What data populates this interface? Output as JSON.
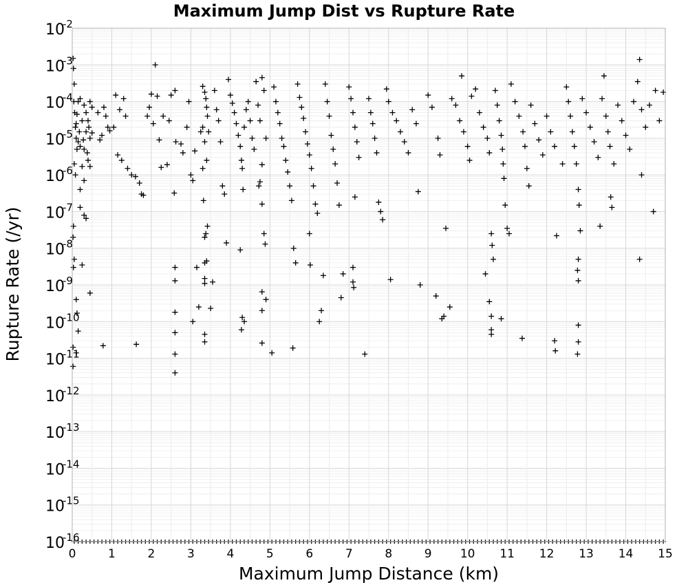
{
  "chart_data": {
    "type": "scatter",
    "title": "Maximum Jump Dist vs Rupture Rate",
    "xlabel": "Maximum Jump Distance (km)",
    "ylabel": "Rupture Rate (/yr)",
    "xlim": [
      0,
      15
    ],
    "ylim": [
      1e-16,
      0.01
    ],
    "yscale": "log",
    "grid": true,
    "marker": "plus",
    "marker_color": "#000000",
    "x_ticks": [
      "0",
      "1",
      "2",
      "3",
      "4",
      "5",
      "6",
      "7",
      "8",
      "9",
      "10",
      "11",
      "12",
      "13",
      "14",
      "15"
    ],
    "y_ticks": [
      {
        "base": "10",
        "exp": "-16"
      },
      {
        "base": "10",
        "exp": "-15"
      },
      {
        "base": "10",
        "exp": "-14"
      },
      {
        "base": "10",
        "exp": "-13"
      },
      {
        "base": "10",
        "exp": "-12"
      },
      {
        "base": "10",
        "exp": "-11"
      },
      {
        "base": "10",
        "exp": "-10"
      },
      {
        "base": "10",
        "exp": "-9"
      },
      {
        "base": "10",
        "exp": "-8"
      },
      {
        "base": "10",
        "exp": "-7"
      },
      {
        "base": "10",
        "exp": "-6"
      },
      {
        "base": "10",
        "exp": "-5"
      },
      {
        "base": "10",
        "exp": "-4"
      },
      {
        "base": "10",
        "exp": "-3"
      },
      {
        "base": "10",
        "exp": "-2"
      }
    ],
    "points": [
      [
        0.02,
        0.0015
      ],
      [
        0.03,
        0.0008
      ],
      [
        0.05,
        0.0003
      ],
      [
        0.04,
        0.0001
      ],
      [
        0.06,
        5e-05
      ],
      [
        0.08,
        2e-05
      ],
      [
        0.1,
        1e-05
      ],
      [
        0.12,
        5e-06
      ],
      [
        0.05,
        2e-06
      ],
      [
        0.08,
        1e-06
      ],
      [
        0.03,
        4e-08
      ],
      [
        0.02,
        2e-08
      ],
      [
        0.05,
        5e-09
      ],
      [
        0.03,
        3e-09
      ],
      [
        0.1,
        4e-10
      ],
      [
        0.12,
        1.7e-10
      ],
      [
        0.15,
        5.5e-11
      ],
      [
        0.02,
        2e-11
      ],
      [
        0.02,
        6e-12
      ],
      [
        0.1,
        1.4e-11
      ],
      [
        0.25,
        3.5e-09
      ],
      [
        0.45,
        6e-10
      ],
      [
        0.2,
        1.3e-07
      ],
      [
        0.3,
        8e-08
      ],
      [
        0.35,
        6.5e-08
      ],
      [
        0.2,
        4e-07
      ],
      [
        0.3,
        7e-07
      ],
      [
        0.25,
        1.7e-06
      ],
      [
        0.4,
        2.5e-06
      ],
      [
        0.45,
        1.7e-06
      ],
      [
        0.15,
        0.0001
      ],
      [
        0.2,
        0.00012
      ],
      [
        0.3,
        8e-05
      ],
      [
        0.35,
        5e-05
      ],
      [
        0.4,
        3e-05
      ],
      [
        0.45,
        0.0001
      ],
      [
        0.5,
        7e-05
      ],
      [
        0.25,
        3e-05
      ],
      [
        0.35,
        1.5e-05
      ],
      [
        0.15,
        8e-06
      ],
      [
        0.2,
        6e-06
      ],
      [
        0.3,
        5e-06
      ],
      [
        0.45,
        1e-05
      ],
      [
        0.1,
        2.5e-05
      ],
      [
        0.18,
        1.5e-05
      ],
      [
        0.28,
        9e-06
      ],
      [
        0.38,
        4e-06
      ],
      [
        0.5,
        1.4e-05
      ],
      [
        0.42,
        2e-05
      ],
      [
        0.12,
        4.5e-05
      ],
      [
        0.8,
        7e-05
      ],
      [
        0.85,
        4e-05
      ],
      [
        0.9,
        2e-05
      ],
      [
        0.75,
        1.2e-05
      ],
      [
        0.95,
        1.6e-05
      ],
      [
        0.65,
        5e-05
      ],
      [
        0.7,
        9e-06
      ],
      [
        0.78,
        2.2e-11
      ],
      [
        1.1,
        0.00015
      ],
      [
        1.2,
        6e-05
      ],
      [
        1.3,
        0.00012
      ],
      [
        1.35,
        4e-05
      ],
      [
        1.15,
        3.5e-06
      ],
      [
        1.05,
        2e-05
      ],
      [
        1.25,
        2.5e-06
      ],
      [
        1.4,
        1.5e-06
      ],
      [
        1.5,
        1e-06
      ],
      [
        1.6,
        9e-07
      ],
      [
        1.7,
        6e-07
      ],
      [
        1.75,
        3e-07
      ],
      [
        1.8,
        2.8e-07
      ],
      [
        1.62,
        2.4e-11
      ],
      [
        1.9,
        4e-05
      ],
      [
        1.95,
        7e-05
      ],
      [
        2.0,
        0.00016
      ],
      [
        2.05,
        2.5e-05
      ],
      [
        2.1,
        0.001
      ],
      [
        2.15,
        0.00014
      ],
      [
        2.2,
        9e-06
      ],
      [
        2.25,
        1.6e-06
      ],
      [
        2.3,
        4e-05
      ],
      [
        2.4,
        1.9e-06
      ],
      [
        2.45,
        3e-05
      ],
      [
        2.5,
        0.00015
      ],
      [
        2.6,
        0.0002
      ],
      [
        2.62,
        8e-06
      ],
      [
        2.58,
        3.2e-07
      ],
      [
        2.6,
        3e-09
      ],
      [
        2.6,
        1.3e-09
      ],
      [
        2.6,
        1.8e-10
      ],
      [
        2.6,
        5e-11
      ],
      [
        2.6,
        1.3e-11
      ],
      [
        2.6,
        4e-12
      ],
      [
        2.75,
        7e-06
      ],
      [
        2.8,
        4e-06
      ],
      [
        2.9,
        2e-05
      ],
      [
        2.95,
        0.0001
      ],
      [
        3.0,
        1e-06
      ],
      [
        3.05,
        7e-07
      ],
      [
        3.1,
        4.5e-06
      ],
      [
        3.05,
        1e-10
      ],
      [
        3.15,
        3e-09
      ],
      [
        3.2,
        2.5e-10
      ],
      [
        3.25,
        1.5e-05
      ],
      [
        3.3,
        2e-05
      ],
      [
        3.32,
        2e-07
      ],
      [
        3.35,
        2e-08
      ],
      [
        3.35,
        4e-09
      ],
      [
        3.35,
        1.5e-09
      ],
      [
        3.35,
        1.1e-09
      ],
      [
        3.35,
        4.5e-11
      ],
      [
        3.35,
        2.8e-11
      ],
      [
        3.4,
        4.5e-09
      ],
      [
        3.38,
        2.5e-08
      ],
      [
        3.42,
        4e-08
      ],
      [
        3.3,
        0.00026
      ],
      [
        3.35,
        0.00018
      ],
      [
        3.38,
        0.00012
      ],
      [
        3.4,
        7e-05
      ],
      [
        3.42,
        4e-05
      ],
      [
        3.45,
        1.5e-05
      ],
      [
        3.35,
        8e-06
      ],
      [
        3.4,
        2.5e-06
      ],
      [
        3.3,
        1.5e-06
      ],
      [
        3.5,
        2.3e-10
      ],
      [
        3.55,
        1.2e-09
      ],
      [
        3.6,
        0.0002
      ],
      [
        3.65,
        6e-05
      ],
      [
        3.7,
        3e-05
      ],
      [
        3.75,
        8e-06
      ],
      [
        3.8,
        5e-07
      ],
      [
        3.85,
        3e-07
      ],
      [
        3.9,
        1.4e-08
      ],
      [
        3.95,
        0.0004
      ],
      [
        4.0,
        0.00015
      ],
      [
        4.05,
        9e-05
      ],
      [
        4.1,
        5e-05
      ],
      [
        4.15,
        2.5e-05
      ],
      [
        4.2,
        1.2e-05
      ],
      [
        4.25,
        6e-06
      ],
      [
        4.28,
        2.5e-06
      ],
      [
        4.3,
        1.5e-06
      ],
      [
        4.32,
        4e-07
      ],
      [
        4.25,
        9e-09
      ],
      [
        4.3,
        1.3e-10
      ],
      [
        4.35,
        1e-10
      ],
      [
        4.28,
        6e-11
      ],
      [
        4.35,
        2e-05
      ],
      [
        4.4,
        6e-05
      ],
      [
        4.45,
        0.0001
      ],
      [
        4.5,
        3e-05
      ],
      [
        4.55,
        1e-05
      ],
      [
        4.6,
        5e-06
      ],
      [
        4.65,
        0.00035
      ],
      [
        4.7,
        8e-05
      ],
      [
        4.75,
        3e-05
      ],
      [
        4.8,
        0.00045
      ],
      [
        4.85,
        0.0002
      ],
      [
        4.9,
        1e-05
      ],
      [
        4.8,
        1.9e-06
      ],
      [
        4.75,
        6.5e-07
      ],
      [
        4.72,
        5e-07
      ],
      [
        4.8,
        1.6e-07
      ],
      [
        4.85,
        2.5e-08
      ],
      [
        4.88,
        1.3e-08
      ],
      [
        4.8,
        6.5e-10
      ],
      [
        4.9,
        4e-10
      ],
      [
        4.8,
        2e-10
      ],
      [
        4.8,
        2.6e-11
      ],
      [
        5.05,
        1.4e-11
      ],
      [
        5.1,
        0.00025
      ],
      [
        5.15,
        0.0001
      ],
      [
        5.2,
        5e-05
      ],
      [
        5.25,
        2.5e-05
      ],
      [
        5.3,
        1e-05
      ],
      [
        5.35,
        6e-06
      ],
      [
        5.4,
        2.5e-06
      ],
      [
        5.45,
        1.2e-06
      ],
      [
        5.5,
        5e-07
      ],
      [
        5.55,
        2e-07
      ],
      [
        5.6,
        1e-08
      ],
      [
        5.65,
        4e-09
      ],
      [
        5.58,
        1.9e-11
      ],
      [
        5.7,
        0.0003
      ],
      [
        5.75,
        0.00013
      ],
      [
        5.8,
        7e-05
      ],
      [
        5.85,
        3.5e-05
      ],
      [
        5.9,
        1.5e-05
      ],
      [
        5.95,
        7e-06
      ],
      [
        6.0,
        3.5e-06
      ],
      [
        6.05,
        1.5e-06
      ],
      [
        6.1,
        5e-07
      ],
      [
        6.15,
        1.6e-07
      ],
      [
        6.2,
        9e-08
      ],
      [
        6.0,
        2.5e-08
      ],
      [
        6.02,
        3.5e-09
      ],
      [
        6.25,
        1e-10
      ],
      [
        6.3,
        2e-10
      ],
      [
        6.35,
        1.8e-09
      ],
      [
        6.4,
        0.0003
      ],
      [
        6.45,
        0.0001
      ],
      [
        6.5,
        4e-05
      ],
      [
        6.55,
        1.2e-05
      ],
      [
        6.6,
        5e-06
      ],
      [
        6.65,
        2e-06
      ],
      [
        6.7,
        6e-07
      ],
      [
        6.75,
        1.5e-07
      ],
      [
        6.8,
        4.5e-10
      ],
      [
        6.85,
        2e-09
      ],
      [
        7.0,
        0.00025
      ],
      [
        7.05,
        0.00012
      ],
      [
        7.1,
        5e-05
      ],
      [
        7.15,
        2e-05
      ],
      [
        7.2,
        8e-06
      ],
      [
        7.25,
        3e-06
      ],
      [
        7.15,
        2.5e-07
      ],
      [
        7.1,
        3e-09
      ],
      [
        7.1,
        1.2e-09
      ],
      [
        7.12,
        8.5e-10
      ],
      [
        7.4,
        1.3e-11
      ],
      [
        7.5,
        0.00012
      ],
      [
        7.55,
        5e-05
      ],
      [
        7.6,
        2.5e-05
      ],
      [
        7.65,
        1e-05
      ],
      [
        7.7,
        4e-06
      ],
      [
        7.75,
        1.8e-07
      ],
      [
        7.8,
        1e-07
      ],
      [
        7.85,
        6e-08
      ],
      [
        7.95,
        0.00022
      ],
      [
        8.0,
        0.0001
      ],
      [
        8.05,
        1.4e-09
      ],
      [
        8.1,
        5e-05
      ],
      [
        8.2,
        3e-05
      ],
      [
        8.3,
        1.5e-05
      ],
      [
        8.4,
        8e-06
      ],
      [
        8.5,
        4e-06
      ],
      [
        8.6,
        6e-05
      ],
      [
        8.7,
        2.5e-05
      ],
      [
        8.75,
        3.5e-07
      ],
      [
        8.8,
        1e-09
      ],
      [
        9.0,
        0.00015
      ],
      [
        9.1,
        7e-05
      ],
      [
        9.2,
        5e-10
      ],
      [
        9.25,
        1e-05
      ],
      [
        9.3,
        3.5e-06
      ],
      [
        9.35,
        1.2e-10
      ],
      [
        9.4,
        1.4e-10
      ],
      [
        9.45,
        3.5e-08
      ],
      [
        9.55,
        2.5e-10
      ],
      [
        9.6,
        0.00012
      ],
      [
        9.7,
        8e-05
      ],
      [
        9.8,
        3e-05
      ],
      [
        9.85,
        0.0005
      ],
      [
        9.9,
        1.5e-05
      ],
      [
        10.0,
        6e-06
      ],
      [
        10.05,
        2.5e-06
      ],
      [
        10.1,
        0.00014
      ],
      [
        10.2,
        0.00022
      ],
      [
        10.3,
        5e-05
      ],
      [
        10.4,
        2e-05
      ],
      [
        10.45,
        2e-09
      ],
      [
        10.5,
        1e-05
      ],
      [
        10.55,
        4e-06
      ],
      [
        10.55,
        3.5e-10
      ],
      [
        10.6,
        1.4e-10
      ],
      [
        10.6,
        6e-11
      ],
      [
        10.6,
        4.5e-11
      ],
      [
        10.6,
        2.5e-08
      ],
      [
        10.62,
        1.2e-08
      ],
      [
        10.65,
        5e-09
      ],
      [
        10.7,
        0.0002
      ],
      [
        10.75,
        8e-05
      ],
      [
        10.8,
        3e-05
      ],
      [
        10.85,
        1.2e-05
      ],
      [
        10.88,
        5e-06
      ],
      [
        10.9,
        2e-06
      ],
      [
        10.92,
        8e-07
      ],
      [
        10.95,
        1.5e-07
      ],
      [
        11.0,
        3.5e-08
      ],
      [
        10.85,
        1.2e-10
      ],
      [
        11.05,
        2.5e-08
      ],
      [
        11.1,
        0.0003
      ],
      [
        11.2,
        0.0001
      ],
      [
        11.3,
        4e-05
      ],
      [
        11.4,
        1.5e-05
      ],
      [
        11.45,
        6e-06
      ],
      [
        11.38,
        3.5e-11
      ],
      [
        11.5,
        1.5e-06
      ],
      [
        11.55,
        5e-07
      ],
      [
        11.6,
        8e-05
      ],
      [
        11.7,
        2.5e-05
      ],
      [
        11.8,
        9e-06
      ],
      [
        11.9,
        3.5e-06
      ],
      [
        12.0,
        4e-05
      ],
      [
        12.1,
        1.5e-05
      ],
      [
        12.2,
        6e-06
      ],
      [
        12.25,
        2.2e-08
      ],
      [
        12.2,
        3e-11
      ],
      [
        12.22,
        1.6e-11
      ],
      [
        12.4,
        2e-06
      ],
      [
        12.5,
        0.00025
      ],
      [
        12.55,
        0.0001
      ],
      [
        12.6,
        4e-05
      ],
      [
        12.65,
        1.5e-05
      ],
      [
        12.7,
        6e-06
      ],
      [
        12.75,
        2e-06
      ],
      [
        12.8,
        4e-07
      ],
      [
        12.82,
        1.5e-07
      ],
      [
        12.85,
        3e-08
      ],
      [
        12.8,
        5e-09
      ],
      [
        12.78,
        2.5e-09
      ],
      [
        12.8,
        1.3e-09
      ],
      [
        12.8,
        8e-11
      ],
      [
        12.8,
        2.8e-11
      ],
      [
        12.78,
        1.3e-11
      ],
      [
        12.9,
        0.00012
      ],
      [
        13.0,
        5e-05
      ],
      [
        13.1,
        2e-05
      ],
      [
        13.2,
        8e-06
      ],
      [
        13.3,
        3e-06
      ],
      [
        13.35,
        4e-08
      ],
      [
        13.4,
        0.00012
      ],
      [
        13.45,
        0.0005
      ],
      [
        13.5,
        4e-05
      ],
      [
        13.55,
        1.5e-05
      ],
      [
        13.6,
        6e-06
      ],
      [
        13.65,
        1.3e-07
      ],
      [
        13.62,
        2.5e-07
      ],
      [
        13.7,
        2e-06
      ],
      [
        13.8,
        8e-05
      ],
      [
        13.9,
        3e-05
      ],
      [
        14.0,
        1.2e-05
      ],
      [
        14.1,
        5e-06
      ],
      [
        14.2,
        0.0001
      ],
      [
        14.3,
        0.00035
      ],
      [
        14.35,
        0.0014
      ],
      [
        14.4,
        6e-05
      ],
      [
        14.4,
        1e-06
      ],
      [
        14.35,
        5e-09
      ],
      [
        14.5,
        2e-05
      ],
      [
        14.6,
        8e-05
      ],
      [
        14.7,
        1e-07
      ],
      [
        14.75,
        0.0002
      ],
      [
        14.85,
        3e-05
      ],
      [
        14.95,
        0.00018
      ]
    ],
    "floor_points_x": [
      0.05,
      0.15,
      0.25,
      0.35,
      0.45,
      0.55,
      0.65,
      0.75,
      0.85,
      0.95,
      1.05,
      1.15,
      1.25,
      1.35,
      1.45,
      1.55,
      1.65,
      1.75,
      1.85,
      1.95,
      2.05,
      2.15,
      2.25,
      2.35,
      2.45,
      2.55,
      2.65,
      2.75,
      2.85,
      2.95,
      3.05,
      3.15,
      3.25,
      3.35,
      3.45,
      3.55,
      3.65,
      3.75,
      3.85,
      3.95,
      4.05,
      4.15,
      4.25,
      4.35,
      4.45,
      4.55,
      4.65,
      4.75,
      4.85,
      4.95,
      5.05,
      5.15,
      5.25,
      5.35,
      5.45,
      5.55,
      5.65,
      5.75,
      5.85,
      5.95,
      6.05,
      6.15,
      6.25,
      6.35,
      6.45,
      6.55,
      6.65,
      6.75,
      6.85,
      6.95,
      7.05,
      7.15,
      7.25,
      7.35,
      7.45,
      7.55,
      7.65,
      7.75,
      7.85,
      7.95,
      8.05,
      8.15,
      8.25,
      8.35,
      8.45,
      8.55,
      8.65,
      8.75,
      8.85,
      8.95,
      9.05,
      9.15,
      9.25,
      9.35,
      9.45,
      9.55,
      9.65,
      9.75,
      9.85,
      9.95,
      10.05,
      10.15,
      10.25,
      10.35,
      10.45,
      10.55,
      10.65,
      10.75,
      10.85,
      10.95,
      11.05,
      11.15,
      11.25,
      11.35,
      11.45,
      11.55,
      11.65,
      11.75,
      11.85,
      11.95,
      12.05,
      12.15,
      12.25,
      12.35,
      12.45,
      12.55,
      12.65,
      12.75,
      12.85,
      12.95,
      13.05,
      13.15,
      13.25,
      13.35,
      13.45,
      13.55,
      13.65,
      13.75,
      13.85,
      13.95,
      14.05,
      14.15,
      14.25,
      14.35,
      14.45,
      14.55,
      14.65,
      14.75,
      14.85,
      14.95
    ]
  }
}
